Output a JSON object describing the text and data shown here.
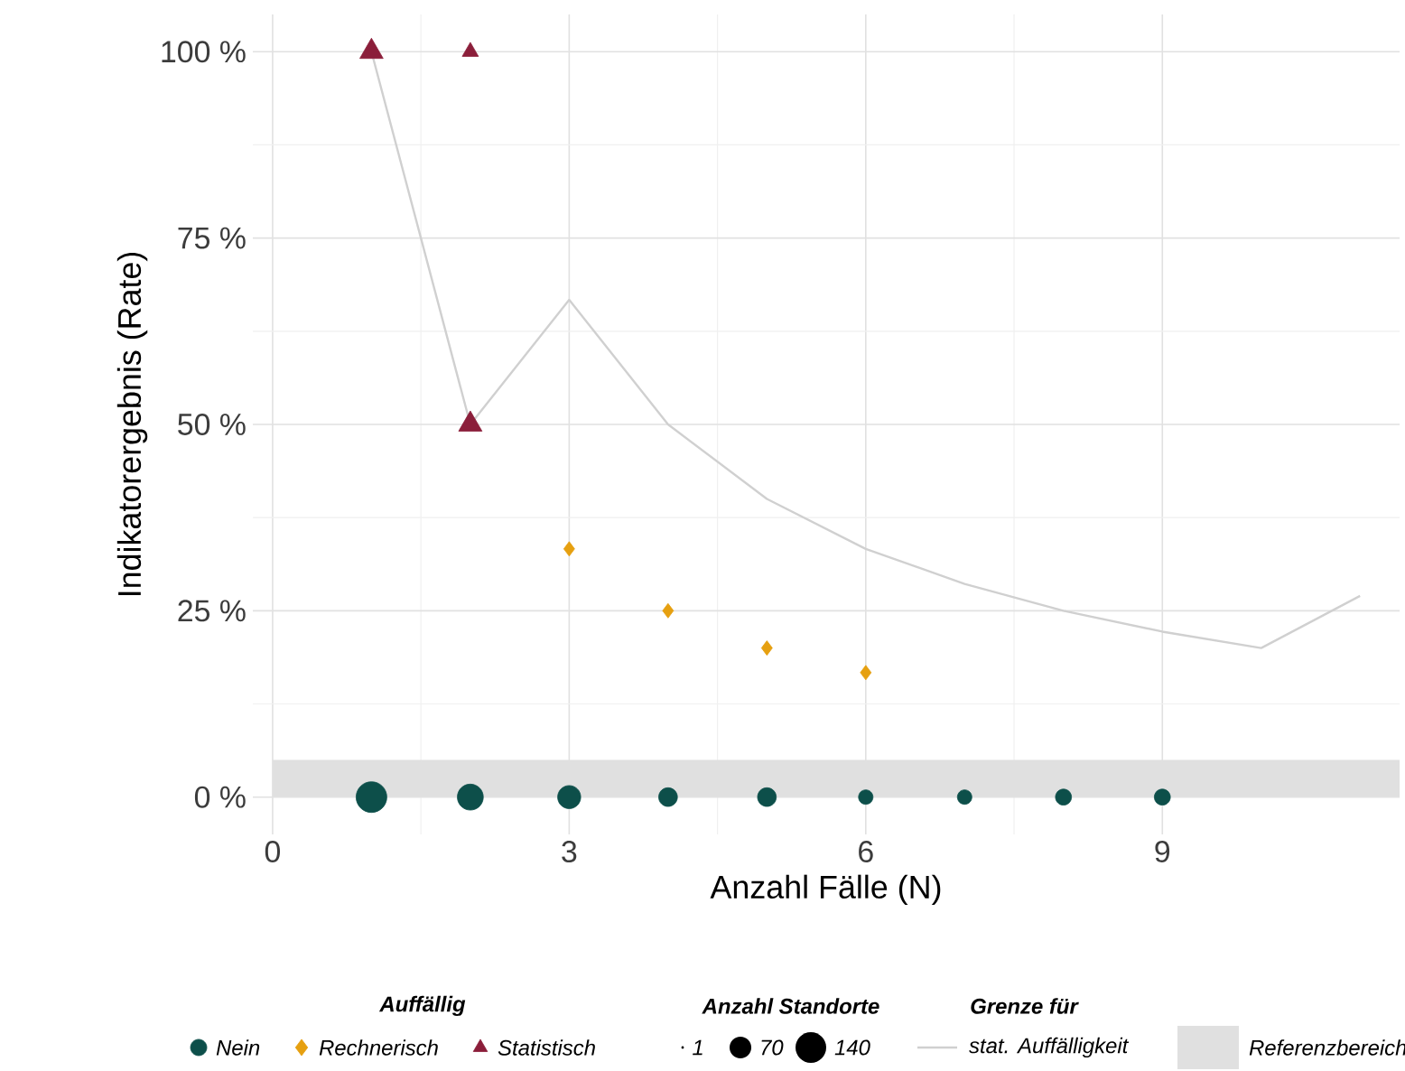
{
  "chart_data": {
    "type": "bubble",
    "xlabel": "Anzahl Fälle (N)",
    "ylabel": "Indikatorergebnis (Rate)",
    "legend_title": "Auffällig",
    "legend": "bottom",
    "grid": true,
    "xlim": [
      -0.2,
      11.4
    ],
    "ylim": [
      -5,
      105
    ],
    "xticks": [
      0,
      3,
      6,
      9
    ],
    "yticks": [
      {
        "value": 0,
        "label": "0 %"
      },
      {
        "value": 25,
        "label": "25 %"
      },
      {
        "value": 50,
        "label": "50 %"
      },
      {
        "value": 75,
        "label": "75 %"
      },
      {
        "value": 100,
        "label": "100 %"
      }
    ],
    "size_legend": [
      1,
      70,
      140
    ],
    "annotations": [
      "Anzahl Standorte",
      "Grenze für"
    ],
    "bands": [
      {
        "axis": "y",
        "from": 0,
        "to": 5,
        "label": "Referenzbereich",
        "color": "#e0e0e0"
      }
    ],
    "series": [
      {
        "name": "stat. Auffälligkeit",
        "type": "line",
        "color": "#d0d0d0",
        "marker": "none",
        "x": [
          1,
          2,
          3,
          4,
          5,
          6,
          7,
          8,
          9,
          10,
          11
        ],
        "values": [
          100,
          50,
          66.7,
          50,
          40,
          33.3,
          28.6,
          25,
          22.2,
          20,
          27
        ]
      },
      {
        "name": "Nein",
        "color": "#0d4f4a",
        "marker": "circle",
        "x": [
          1,
          2,
          3,
          4,
          5,
          6,
          7,
          8,
          9
        ],
        "values": [
          0,
          0,
          0,
          0,
          0,
          0,
          0,
          0,
          0
        ],
        "sizes": [
          140,
          100,
          79,
          52,
          52,
          31,
          31,
          38,
          38
        ]
      },
      {
        "name": "Rechnerisch",
        "color": "#e6a010",
        "marker": "diamond",
        "x": [
          3,
          4,
          5,
          6
        ],
        "values": [
          33.3,
          25,
          20,
          16.7
        ],
        "sizes": [
          20,
          20,
          20,
          20
        ]
      },
      {
        "name": "Statistisch",
        "color": "#8b1e3a",
        "marker": "triangle",
        "x": [
          1,
          2,
          2
        ],
        "values": [
          100,
          100,
          50
        ],
        "sizes": [
          48,
          23,
          48
        ]
      }
    ]
  }
}
